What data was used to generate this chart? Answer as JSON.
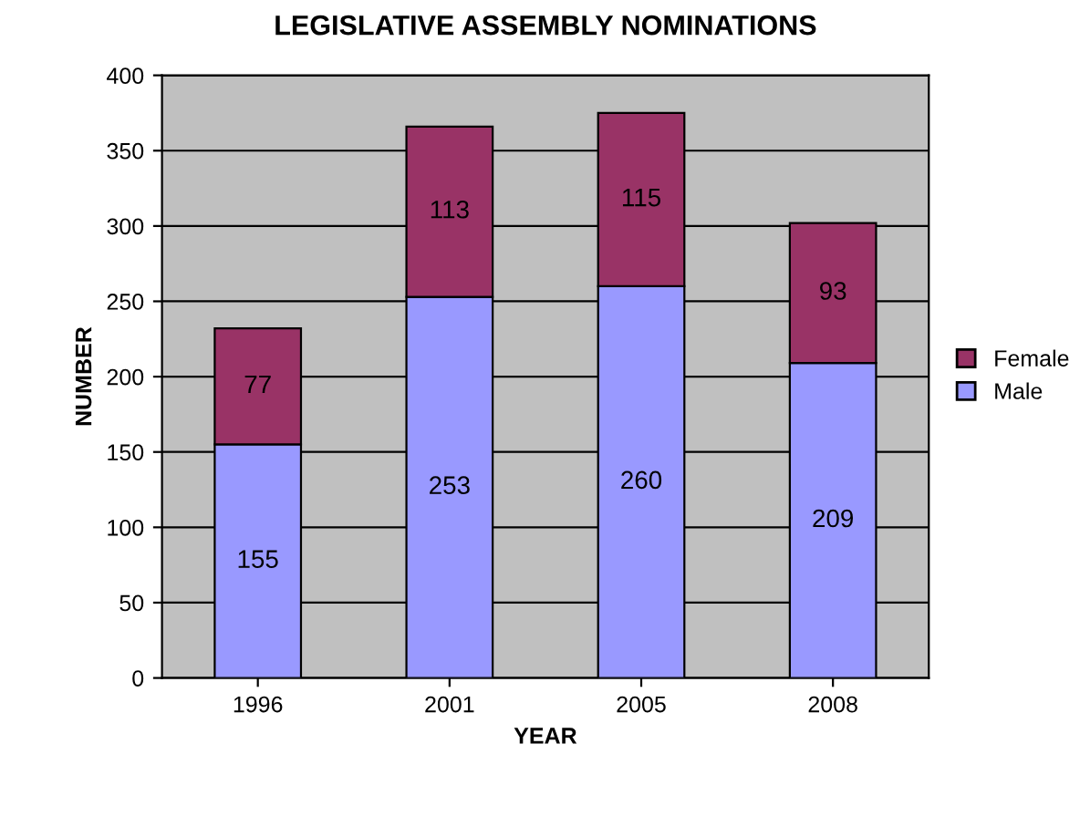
{
  "chart_data": {
    "type": "bar",
    "title": "LEGISLATIVE ASSEMBLY NOMINATIONS",
    "xlabel": "YEAR",
    "ylabel": "NUMBER",
    "categories": [
      "1996",
      "2001",
      "2005",
      "2008"
    ],
    "series": [
      {
        "name": "Male",
        "color": "#9999ff",
        "values": [
          155,
          253,
          260,
          209
        ]
      },
      {
        "name": "Female",
        "color": "#993366",
        "values": [
          77,
          113,
          115,
          93
        ]
      }
    ],
    "stacked": true,
    "data_labels": true,
    "ylim": [
      0,
      400
    ],
    "yticks": [
      0,
      50,
      100,
      150,
      200,
      250,
      300,
      350,
      400
    ],
    "grid": "y",
    "legend": "right"
  }
}
